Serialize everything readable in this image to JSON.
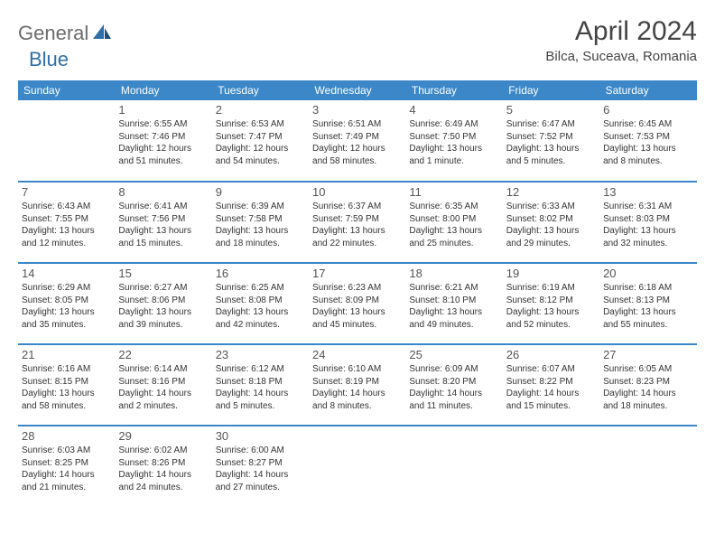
{
  "logo": {
    "text1": "General",
    "text2": "Blue"
  },
  "title": "April 2024",
  "location": "Bilca, Suceava, Romania",
  "header_bg": "#3b87c8",
  "header_fg": "#ffffff",
  "week_border": "#3b87c8",
  "day_headers": [
    "Sunday",
    "Monday",
    "Tuesday",
    "Wednesday",
    "Thursday",
    "Friday",
    "Saturday"
  ],
  "weeks": [
    [
      null,
      {
        "n": "1",
        "sr": "6:55 AM",
        "ss": "7:46 PM",
        "dl": "12 hours and 51 minutes."
      },
      {
        "n": "2",
        "sr": "6:53 AM",
        "ss": "7:47 PM",
        "dl": "12 hours and 54 minutes."
      },
      {
        "n": "3",
        "sr": "6:51 AM",
        "ss": "7:49 PM",
        "dl": "12 hours and 58 minutes."
      },
      {
        "n": "4",
        "sr": "6:49 AM",
        "ss": "7:50 PM",
        "dl": "13 hours and 1 minute."
      },
      {
        "n": "5",
        "sr": "6:47 AM",
        "ss": "7:52 PM",
        "dl": "13 hours and 5 minutes."
      },
      {
        "n": "6",
        "sr": "6:45 AM",
        "ss": "7:53 PM",
        "dl": "13 hours and 8 minutes."
      }
    ],
    [
      {
        "n": "7",
        "sr": "6:43 AM",
        "ss": "7:55 PM",
        "dl": "13 hours and 12 minutes."
      },
      {
        "n": "8",
        "sr": "6:41 AM",
        "ss": "7:56 PM",
        "dl": "13 hours and 15 minutes."
      },
      {
        "n": "9",
        "sr": "6:39 AM",
        "ss": "7:58 PM",
        "dl": "13 hours and 18 minutes."
      },
      {
        "n": "10",
        "sr": "6:37 AM",
        "ss": "7:59 PM",
        "dl": "13 hours and 22 minutes."
      },
      {
        "n": "11",
        "sr": "6:35 AM",
        "ss": "8:00 PM",
        "dl": "13 hours and 25 minutes."
      },
      {
        "n": "12",
        "sr": "6:33 AM",
        "ss": "8:02 PM",
        "dl": "13 hours and 29 minutes."
      },
      {
        "n": "13",
        "sr": "6:31 AM",
        "ss": "8:03 PM",
        "dl": "13 hours and 32 minutes."
      }
    ],
    [
      {
        "n": "14",
        "sr": "6:29 AM",
        "ss": "8:05 PM",
        "dl": "13 hours and 35 minutes."
      },
      {
        "n": "15",
        "sr": "6:27 AM",
        "ss": "8:06 PM",
        "dl": "13 hours and 39 minutes."
      },
      {
        "n": "16",
        "sr": "6:25 AM",
        "ss": "8:08 PM",
        "dl": "13 hours and 42 minutes."
      },
      {
        "n": "17",
        "sr": "6:23 AM",
        "ss": "8:09 PM",
        "dl": "13 hours and 45 minutes."
      },
      {
        "n": "18",
        "sr": "6:21 AM",
        "ss": "8:10 PM",
        "dl": "13 hours and 49 minutes."
      },
      {
        "n": "19",
        "sr": "6:19 AM",
        "ss": "8:12 PM",
        "dl": "13 hours and 52 minutes."
      },
      {
        "n": "20",
        "sr": "6:18 AM",
        "ss": "8:13 PM",
        "dl": "13 hours and 55 minutes."
      }
    ],
    [
      {
        "n": "21",
        "sr": "6:16 AM",
        "ss": "8:15 PM",
        "dl": "13 hours and 58 minutes."
      },
      {
        "n": "22",
        "sr": "6:14 AM",
        "ss": "8:16 PM",
        "dl": "14 hours and 2 minutes."
      },
      {
        "n": "23",
        "sr": "6:12 AM",
        "ss": "8:18 PM",
        "dl": "14 hours and 5 minutes."
      },
      {
        "n": "24",
        "sr": "6:10 AM",
        "ss": "8:19 PM",
        "dl": "14 hours and 8 minutes."
      },
      {
        "n": "25",
        "sr": "6:09 AM",
        "ss": "8:20 PM",
        "dl": "14 hours and 11 minutes."
      },
      {
        "n": "26",
        "sr": "6:07 AM",
        "ss": "8:22 PM",
        "dl": "14 hours and 15 minutes."
      },
      {
        "n": "27",
        "sr": "6:05 AM",
        "ss": "8:23 PM",
        "dl": "14 hours and 18 minutes."
      }
    ],
    [
      {
        "n": "28",
        "sr": "6:03 AM",
        "ss": "8:25 PM",
        "dl": "14 hours and 21 minutes."
      },
      {
        "n": "29",
        "sr": "6:02 AM",
        "ss": "8:26 PM",
        "dl": "14 hours and 24 minutes."
      },
      {
        "n": "30",
        "sr": "6:00 AM",
        "ss": "8:27 PM",
        "dl": "14 hours and 27 minutes."
      },
      null,
      null,
      null,
      null
    ]
  ],
  "labels": {
    "sunrise": "Sunrise: ",
    "sunset": "Sunset: ",
    "daylight": "Daylight: "
  }
}
